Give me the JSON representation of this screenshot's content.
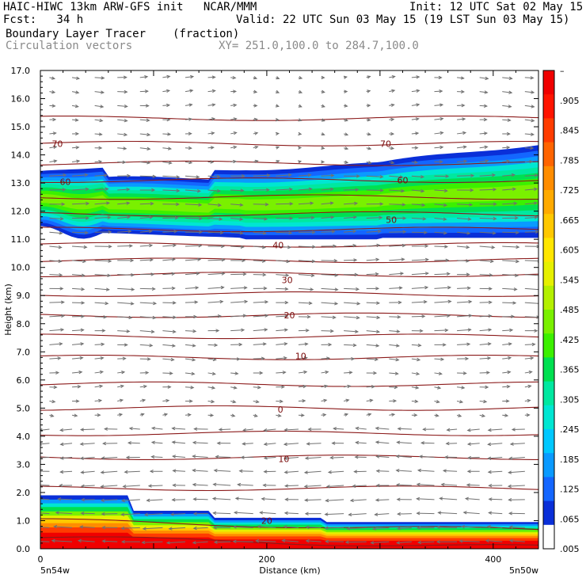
{
  "header": {
    "line1_left": "HAIC-HIWC 13km ARW-GFS init   NCAR/MMM",
    "line1_right": "Init: 12 UTC Sat 02 May 15",
    "line2_left": "Fcst:   34 h",
    "line2_right": "Valid: 22 UTC Sun 03 May 15 (19 LST Sun 03 May 15)",
    "line3_left": "Boundary Layer Tracer",
    "line3_unit": "(fraction)",
    "line4_left": "Circulation vectors",
    "line4_right": "XY= 251.0,100.0 to 284.7,100.0"
  },
  "colors": {
    "contour": "#8b1a1a",
    "vector": "#707070",
    "scale": [
      "#ffffff",
      "#0a2fd8",
      "#1466ff",
      "#0a9aff",
      "#00c8ff",
      "#00e6d2",
      "#00e8a0",
      "#00e050",
      "#3cf000",
      "#7af000",
      "#b4f000",
      "#e6f000",
      "#ffe600",
      "#ffc800",
      "#ffaa00",
      "#ff8c00",
      "#ff6400",
      "#ff3c00",
      "#ff1400",
      "#f00000"
    ]
  },
  "chart_data": {
    "type": "heatmap",
    "title": "Boundary Layer Tracer",
    "unit": "(fraction)",
    "xlabel": "Distance (km)",
    "ylabel": "Height (km)",
    "xlim": [
      0,
      440
    ],
    "ylim": [
      0,
      17
    ],
    "x_ticks": [
      "0",
      "200",
      "400"
    ],
    "x_tick_values": [
      0,
      200,
      400
    ],
    "x_endpoint_labels": [
      "5n54w",
      "5n50w"
    ],
    "y_ticks": [
      "0.0",
      "1.0",
      "2.0",
      "3.0",
      "4.0",
      "5.0",
      "6.0",
      "7.0",
      "8.0",
      "9.0",
      "10.0",
      "11.0",
      "12.0",
      "13.0",
      "14.0",
      "15.0",
      "16.0",
      "17.0"
    ],
    "colorbar_labels": [
      "–",
      ".905",
      ".845",
      ".785",
      ".725",
      ".665",
      ".605",
      ".545",
      ".485",
      ".425",
      ".365",
      ".305",
      ".245",
      ".185",
      ".125",
      ".065",
      ".005"
    ],
    "contour_labels": [
      {
        "text": "70",
        "x": 15,
        "y": 14.4
      },
      {
        "text": "70",
        "x": 305,
        "y": 14.4
      },
      {
        "text": "60",
        "x": 22,
        "y": 13.05
      },
      {
        "text": "60",
        "x": 320,
        "y": 13.1
      },
      {
        "text": "50",
        "x": 310,
        "y": 11.7
      },
      {
        "text": "40",
        "x": 210,
        "y": 10.8
      },
      {
        "text": "30",
        "x": 218,
        "y": 9.55
      },
      {
        "text": "20",
        "x": 220,
        "y": 8.3
      },
      {
        "text": "10",
        "x": 230,
        "y": 6.85
      },
      {
        "text": "0",
        "x": 212,
        "y": 4.95
      },
      {
        "text": "10",
        "x": 215,
        "y": 3.2
      },
      {
        "text": "20",
        "x": 200,
        "y": 1.0
      }
    ],
    "contour_heights": [
      0.4,
      1.0,
      2.15,
      3.25,
      4.1,
      5.0,
      5.85,
      6.8,
      7.55,
      8.3,
      9.05,
      9.75,
      10.25,
      10.8,
      11.35,
      11.9,
      12.5,
      13.1,
      13.7,
      14.4,
      15.3
    ],
    "upper_layer": {
      "base_km": 11.0,
      "top_km": 13.6,
      "core_value": 0.44
    },
    "lower_layer": {
      "top_km": 1.8,
      "core_value": 0.97
    }
  }
}
